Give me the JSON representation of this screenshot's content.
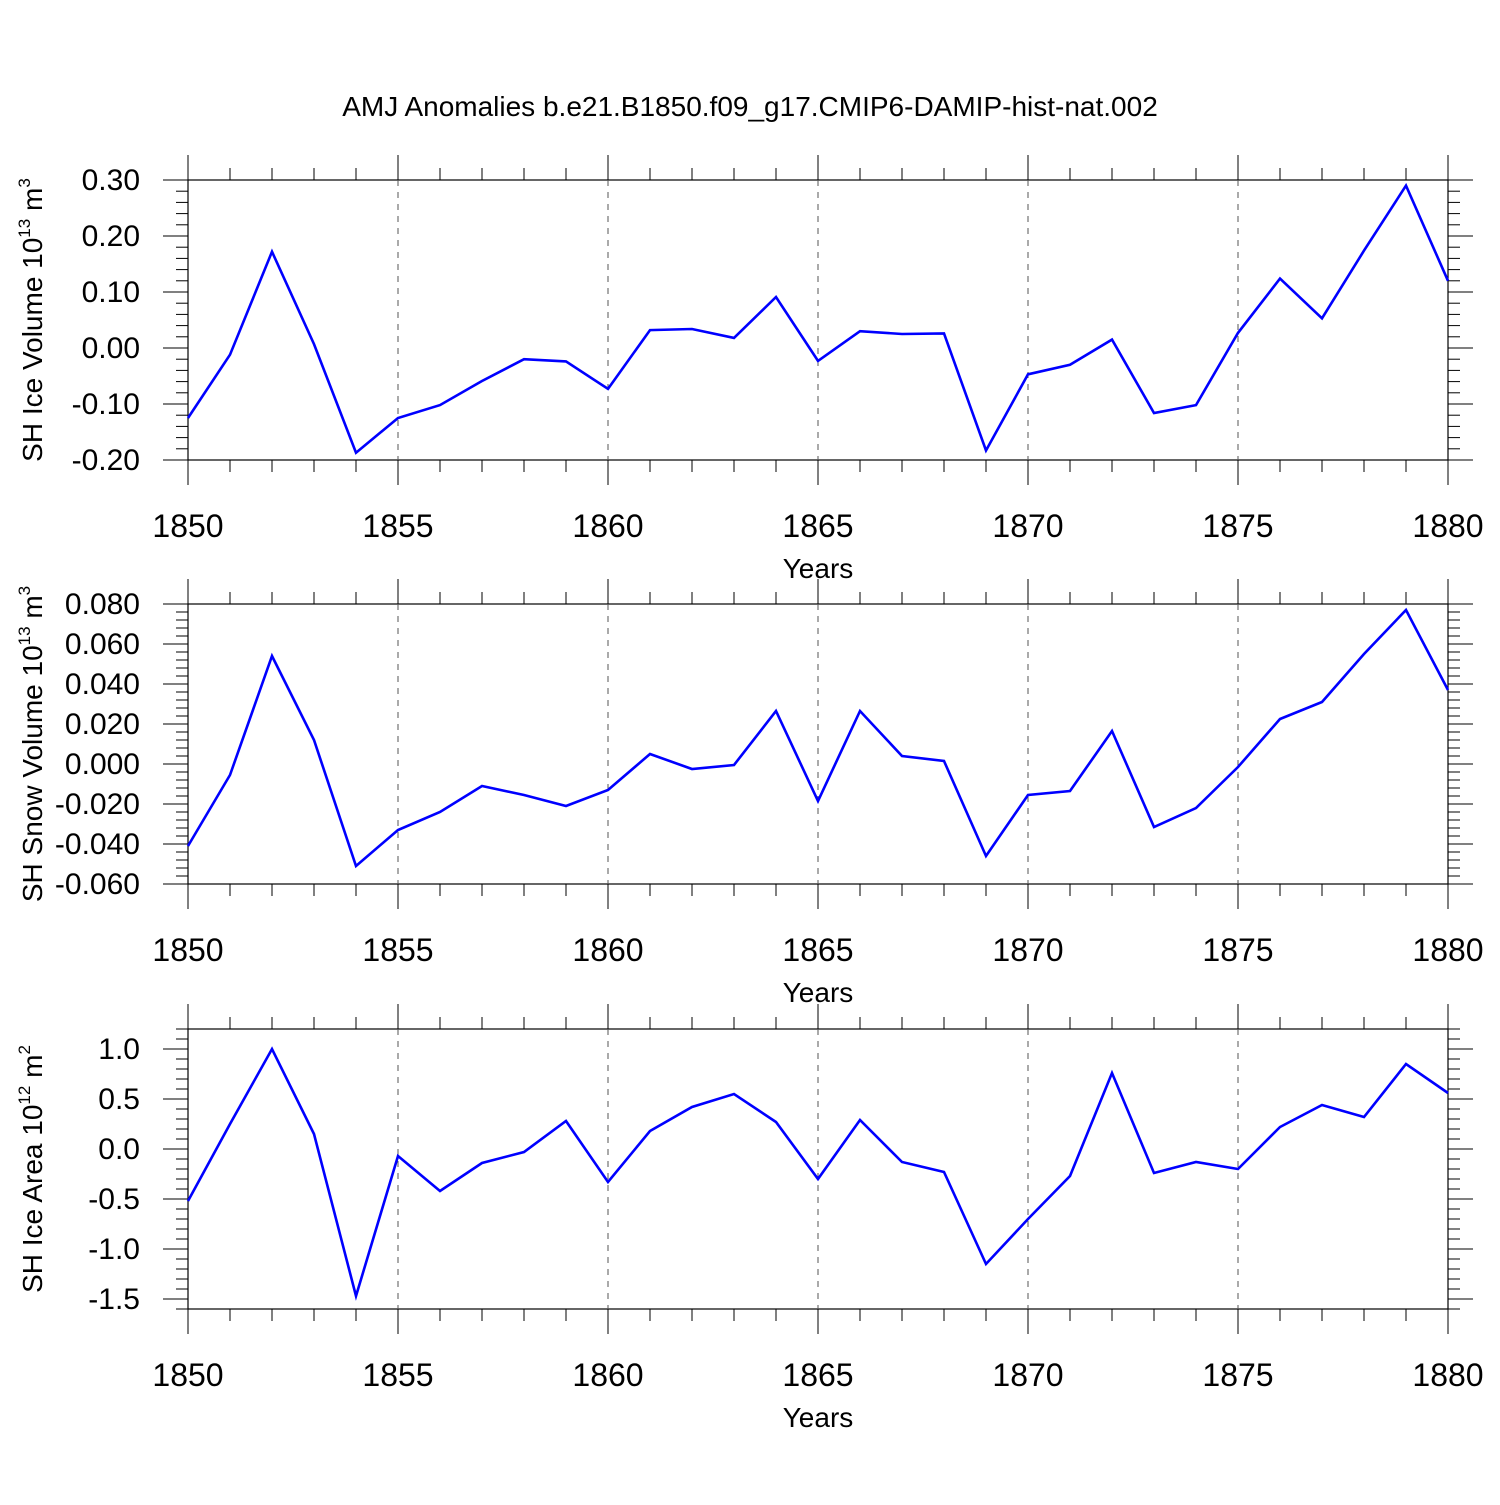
{
  "title": "AMJ Anomalies b.e21.B1850.f09_g17.CMIP6-DAMIP-hist-nat.002",
  "colors": {
    "line": "#0000ff",
    "axis": "#000000",
    "grid": "#555555",
    "background": "#ffffff"
  },
  "chart_data": [
    {
      "type": "line",
      "ylabel": "SH Ice Volume 10",
      "ylabel_exp": "13",
      "ylabel_unit": " m",
      "ylabel_unit_exp": "3",
      "xlabel": "Years",
      "xlim": [
        1850,
        1880
      ],
      "ylim": [
        -0.2,
        0.3
      ],
      "yticks": [
        -0.2,
        -0.1,
        0.0,
        0.1,
        0.2,
        0.3
      ],
      "ytick_labels": [
        "-0.20",
        "-0.10",
        "0.00",
        "0.10",
        "0.20",
        "0.30"
      ],
      "xticks": [
        1850,
        1855,
        1860,
        1865,
        1870,
        1875,
        1880
      ],
      "xtick_labels": [
        "1850",
        "1855",
        "1860",
        "1865",
        "1870",
        "1875",
        "1880"
      ],
      "x": [
        1850,
        1851,
        1852,
        1853,
        1854,
        1855,
        1856,
        1857,
        1858,
        1859,
        1860,
        1861,
        1862,
        1863,
        1864,
        1865,
        1866,
        1867,
        1868,
        1869,
        1870,
        1871,
        1872,
        1873,
        1874,
        1875,
        1876,
        1877,
        1878,
        1879,
        1880
      ],
      "values": [
        -0.125,
        -0.012,
        0.172,
        0.007,
        -0.187,
        -0.125,
        -0.102,
        -0.059,
        -0.02,
        -0.024,
        -0.073,
        0.032,
        0.034,
        0.018,
        0.091,
        -0.023,
        0.03,
        0.025,
        0.026,
        -0.183,
        -0.047,
        -0.03,
        0.015,
        -0.116,
        -0.102,
        0.027,
        0.124,
        0.053,
        0.174,
        0.29,
        0.12
      ]
    },
    {
      "type": "line",
      "ylabel": "SH Snow Volume 10",
      "ylabel_exp": "13",
      "ylabel_unit": " m",
      "ylabel_unit_exp": "3",
      "xlabel": "Years",
      "xlim": [
        1850,
        1880
      ],
      "ylim": [
        -0.06,
        0.08
      ],
      "yticks": [
        -0.06,
        -0.04,
        -0.02,
        0.0,
        0.02,
        0.04,
        0.06,
        0.08
      ],
      "ytick_labels": [
        "-0.060",
        "-0.040",
        "-0.020",
        "0.000",
        "0.020",
        "0.040",
        "0.060",
        "0.080"
      ],
      "xticks": [
        1850,
        1855,
        1860,
        1865,
        1870,
        1875,
        1880
      ],
      "xtick_labels": [
        "1850",
        "1855",
        "1860",
        "1865",
        "1870",
        "1875",
        "1880"
      ],
      "x": [
        1850,
        1851,
        1852,
        1853,
        1854,
        1855,
        1856,
        1857,
        1858,
        1859,
        1860,
        1861,
        1862,
        1863,
        1864,
        1865,
        1866,
        1867,
        1868,
        1869,
        1870,
        1871,
        1872,
        1873,
        1874,
        1875,
        1876,
        1877,
        1878,
        1879,
        1880
      ],
      "values": [
        -0.041,
        -0.0055,
        0.054,
        0.012,
        -0.051,
        -0.033,
        -0.024,
        -0.011,
        -0.0155,
        -0.021,
        -0.013,
        0.005,
        -0.0025,
        -0.0005,
        0.0265,
        -0.0185,
        0.0265,
        0.004,
        0.0015,
        -0.046,
        -0.0155,
        -0.0135,
        0.0165,
        -0.0315,
        -0.022,
        -0.0015,
        0.0225,
        0.031,
        0.055,
        0.077,
        0.037
      ]
    },
    {
      "type": "line",
      "ylabel": "SH Ice Area 10",
      "ylabel_exp": "12",
      "ylabel_unit": " m",
      "ylabel_unit_exp": "2",
      "xlabel": "Years",
      "xlim": [
        1850,
        1880
      ],
      "ylim": [
        -1.6,
        1.2
      ],
      "yticks": [
        -1.5,
        -1.0,
        -0.5,
        0.0,
        0.5,
        1.0
      ],
      "ytick_labels": [
        "-1.5",
        "-1.0",
        "-0.5",
        "0.0",
        "0.5",
        "1.0"
      ],
      "xticks": [
        1850,
        1855,
        1860,
        1865,
        1870,
        1875,
        1880
      ],
      "xtick_labels": [
        "1850",
        "1855",
        "1860",
        "1865",
        "1870",
        "1875",
        "1880"
      ],
      "x": [
        1850,
        1851,
        1852,
        1853,
        1854,
        1855,
        1856,
        1857,
        1858,
        1859,
        1860,
        1861,
        1862,
        1863,
        1864,
        1865,
        1866,
        1867,
        1868,
        1869,
        1870,
        1871,
        1872,
        1873,
        1874,
        1875,
        1876,
        1877,
        1878,
        1879,
        1880
      ],
      "values": [
        -0.52,
        0.25,
        1.0,
        0.15,
        -1.47,
        -0.07,
        -0.42,
        -0.14,
        -0.03,
        0.28,
        -0.33,
        0.18,
        0.42,
        0.55,
        0.27,
        -0.3,
        0.29,
        -0.13,
        -0.23,
        -1.15,
        -0.7,
        -0.27,
        0.76,
        -0.24,
        -0.13,
        -0.2,
        0.22,
        0.44,
        0.32,
        0.85,
        0.56
      ]
    }
  ]
}
